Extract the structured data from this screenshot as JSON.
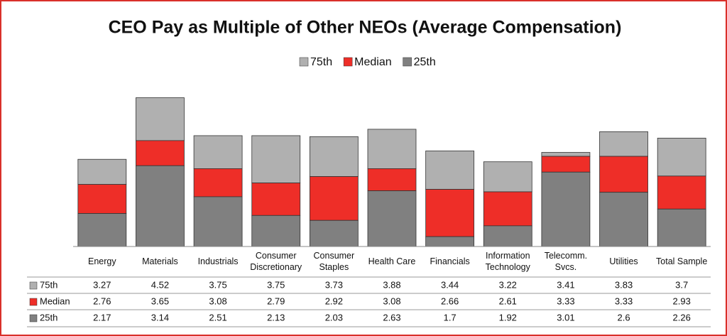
{
  "chart_data": {
    "type": "bar",
    "title": "CEO Pay as Multiple of Other NEOs (Average Compensation)",
    "categories": [
      "Energy",
      "Materials",
      "Industrials",
      "Consumer Discretionary",
      "Consumer Staples",
      "Health Care",
      "Financials",
      "Information Technology",
      "Telecomm. Svcs.",
      "Utilities",
      "Total Sample"
    ],
    "series": [
      {
        "name": "75th",
        "color": "#b0b0b0",
        "values": [
          3.27,
          4.52,
          3.75,
          3.75,
          3.73,
          3.88,
          3.44,
          3.22,
          3.41,
          3.83,
          3.7
        ]
      },
      {
        "name": "Median",
        "color": "#ee2e28",
        "values": [
          2.76,
          3.65,
          3.08,
          2.79,
          2.92,
          3.08,
          2.66,
          2.61,
          3.33,
          3.33,
          2.93
        ]
      },
      {
        "name": "25th",
        "color": "#808080",
        "values": [
          2.17,
          3.14,
          2.51,
          2.13,
          2.03,
          2.63,
          1.7,
          1.92,
          3.01,
          2.6,
          2.26
        ]
      }
    ],
    "ylim": [
      1.5,
      4.6
    ]
  }
}
